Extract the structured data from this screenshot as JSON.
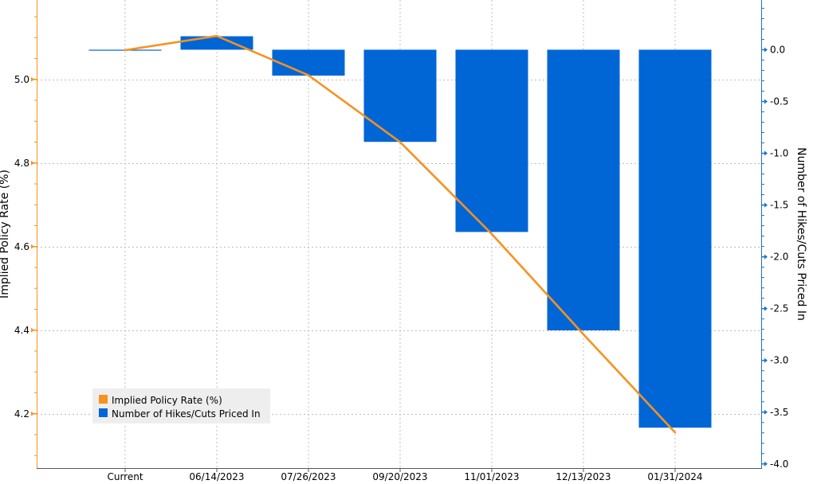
{
  "chart_data": {
    "type": "bar",
    "categories": [
      "Current",
      "06/14/2023",
      "07/26/2023",
      "09/20/2023",
      "11/01/2023",
      "12/13/2023",
      "01/31/2024"
    ],
    "series": [
      {
        "name": "Implied Policy Rate (%)",
        "type": "line",
        "axis": "left",
        "color": "#F7921E",
        "values": [
          5.07,
          5.104,
          5.01,
          4.85,
          4.63,
          4.39,
          4.155
        ]
      },
      {
        "name": "Number of Hikes/Cuts Priced In",
        "type": "bar",
        "axis": "right",
        "color": "#0066D6",
        "values": [
          0.0,
          0.13,
          -0.25,
          -0.89,
          -1.76,
          -2.71,
          -3.65
        ]
      }
    ],
    "left_axis": {
      "label": "Implied Policy Rate (%)",
      "ylim": [
        4.07,
        5.19
      ],
      "ticks": [
        "4.2",
        "4.4",
        "4.6",
        "4.8",
        "5.0"
      ],
      "tick_values": [
        4.2,
        4.4,
        4.6,
        4.8,
        5.0
      ]
    },
    "right_axis": {
      "label": "Number of Hikes/Cuts Priced In",
      "ylim": [
        -4.04,
        0.48
      ],
      "ticks": [
        "0.0",
        "-0.5",
        "-1.0",
        "-1.5",
        "-2.0",
        "-2.5",
        "-3.0",
        "-3.5",
        "-4.0"
      ],
      "tick_values": [
        0.0,
        -0.5,
        -1.0,
        -1.5,
        -2.0,
        -2.5,
        -3.0,
        -3.5,
        -4.0
      ]
    },
    "grid": true,
    "legend": {
      "position": "bottom-left",
      "entries": [
        "Implied Policy Rate (%)",
        "Number of Hikes/Cuts Priced In"
      ]
    }
  }
}
